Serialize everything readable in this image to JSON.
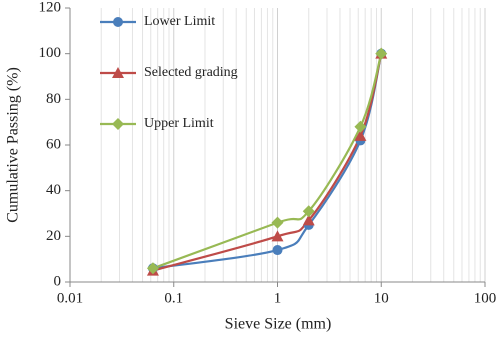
{
  "chart_data": {
    "type": "line",
    "x_label": "Sieve Size (mm)",
    "y_label": "Cumulative Passing (%)",
    "x_scale": "log",
    "x": [
      0.063,
      1,
      2,
      6.3,
      10
    ],
    "series": [
      {
        "name": "Lower Limit",
        "color": "#4a7ebb",
        "marker": "circle",
        "values": [
          6,
          14,
          25,
          62,
          100
        ]
      },
      {
        "name": "Selected grading",
        "color": "#be4b48",
        "marker": "triangle",
        "values": [
          5,
          20,
          27,
          64,
          100
        ]
      },
      {
        "name": "Upper Limit",
        "color": "#98b954",
        "marker": "diamond",
        "values": [
          6,
          26,
          31,
          68,
          100
        ]
      }
    ],
    "xlim": [
      0.01,
      100
    ],
    "xticks": [
      0.01,
      0.1,
      1,
      10,
      100
    ],
    "ylim": [
      0,
      120
    ],
    "yticks": [
      0,
      20,
      40,
      60,
      80,
      100,
      120
    ],
    "grid": "x",
    "legend": "upper left"
  }
}
